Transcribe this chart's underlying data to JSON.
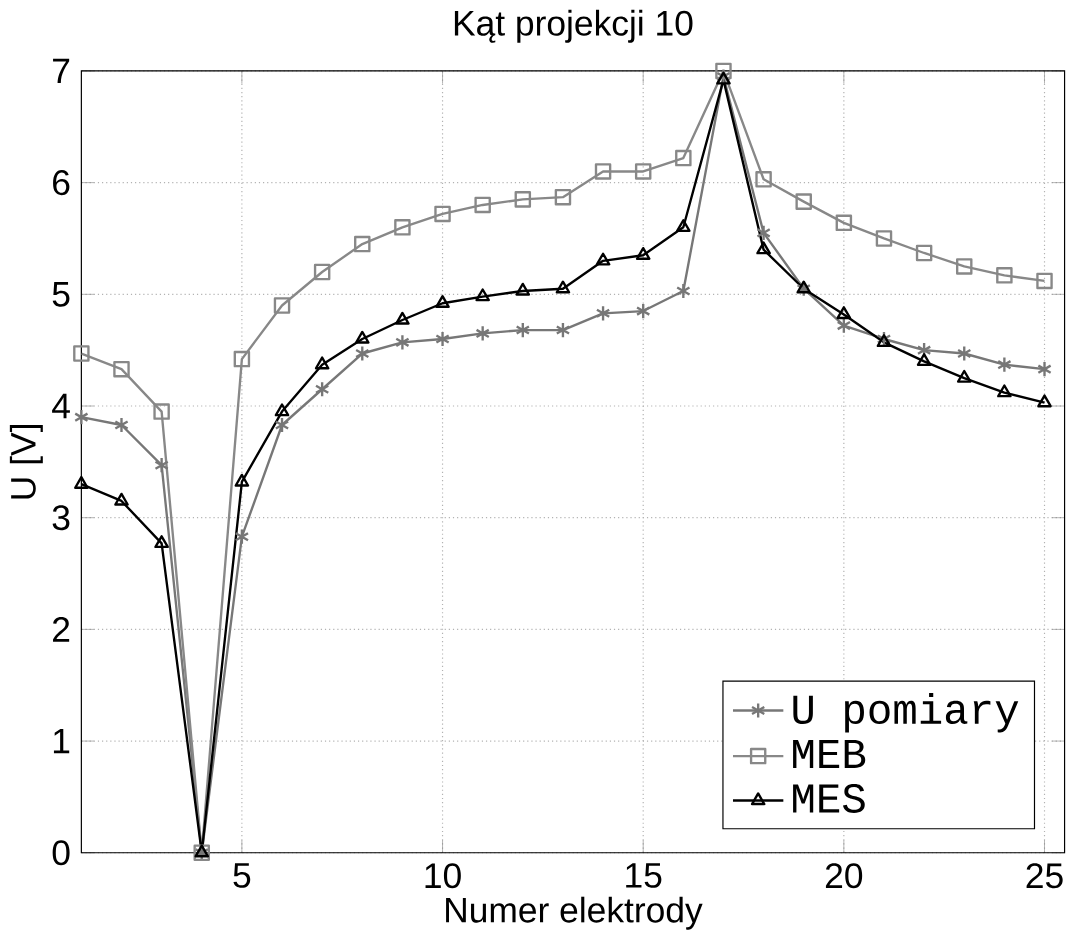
{
  "chart_data": {
    "type": "line",
    "title": "Kąt projekcji 10",
    "xlabel": "Numer elektrody",
    "ylabel": "U [V]",
    "x": [
      1,
      2,
      3,
      4,
      5,
      6,
      7,
      8,
      9,
      10,
      11,
      12,
      13,
      14,
      15,
      16,
      17,
      18,
      19,
      20,
      21,
      22,
      23,
      24,
      25
    ],
    "xlim": [
      1,
      25.5
    ],
    "xticks": [
      5,
      10,
      15,
      20,
      25
    ],
    "ylim": [
      0,
      7
    ],
    "yticks": [
      0,
      1,
      2,
      3,
      4,
      5,
      6,
      7
    ],
    "grid": true,
    "legend": "bottom right",
    "series": [
      {
        "name": "U pomiary",
        "color": "#777777",
        "marker": "cross",
        "values": [
          3.9,
          3.83,
          3.47,
          0,
          2.83,
          3.83,
          4.15,
          4.47,
          4.57,
          4.6,
          4.65,
          4.68,
          4.68,
          4.83,
          4.85,
          5.03,
          6.95,
          5.55,
          5.05,
          4.72,
          4.6,
          4.5,
          4.47,
          4.37,
          4.33
        ]
      },
      {
        "name": "MEB",
        "color": "#888888",
        "marker": "square",
        "values": [
          4.47,
          4.33,
          3.95,
          0,
          4.42,
          4.9,
          5.2,
          5.45,
          5.6,
          5.72,
          5.8,
          5.85,
          5.87,
          6.1,
          6.1,
          6.22,
          7.0,
          6.03,
          5.83,
          5.64,
          5.5,
          5.37,
          5.25,
          5.17,
          5.12
        ]
      },
      {
        "name": "MES",
        "color": "#000000",
        "marker": "triangle",
        "values": [
          3.3,
          3.15,
          2.77,
          0,
          3.32,
          3.95,
          4.37,
          4.6,
          4.77,
          4.92,
          4.98,
          5.03,
          5.05,
          5.3,
          5.35,
          5.6,
          6.92,
          5.4,
          5.05,
          4.82,
          4.57,
          4.4,
          4.25,
          4.12,
          4.03
        ]
      }
    ]
  }
}
